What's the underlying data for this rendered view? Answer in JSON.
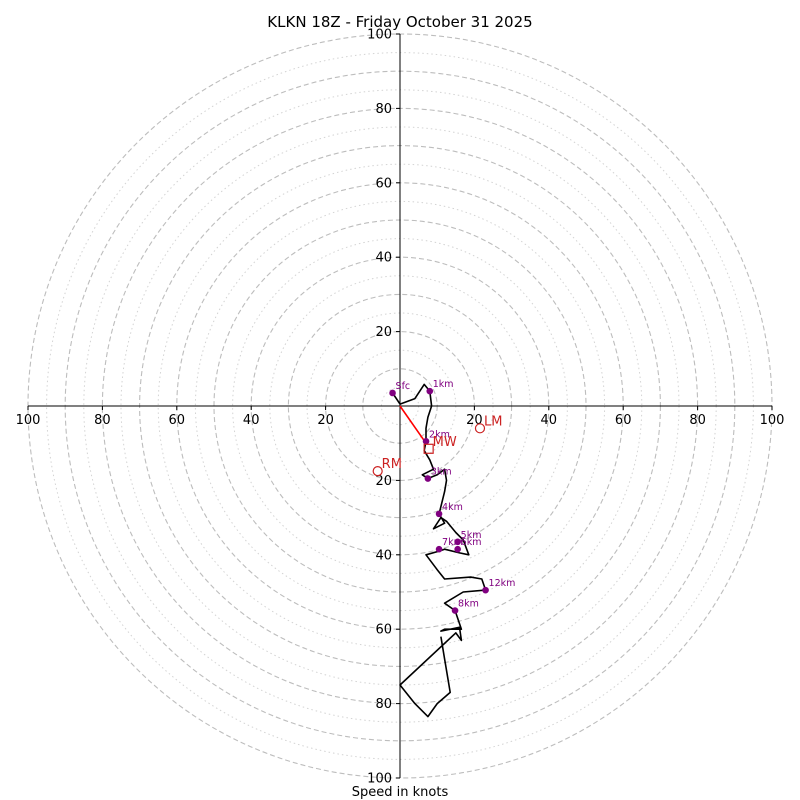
{
  "chart_data": {
    "type": "hodograph",
    "title": "KLKN 18Z - Friday October 31 2025",
    "xlabel": "Speed in knots",
    "xlim": [
      -100,
      100
    ],
    "ylim": [
      -100,
      100
    ],
    "major_rings": [
      10,
      20,
      30,
      40,
      50,
      60,
      70,
      80,
      90,
      100
    ],
    "minor_rings": [
      5,
      15,
      25,
      35,
      45,
      55,
      65,
      75,
      85,
      95
    ],
    "x_ticks": [
      {
        "value": -100,
        "label": "100"
      },
      {
        "value": -80,
        "label": "80"
      },
      {
        "value": -60,
        "label": "60"
      },
      {
        "value": -40,
        "label": "40"
      },
      {
        "value": -20,
        "label": "20"
      },
      {
        "value": 20,
        "label": "20"
      },
      {
        "value": 40,
        "label": "40"
      },
      {
        "value": 60,
        "label": "60"
      },
      {
        "value": 80,
        "label": "80"
      },
      {
        "value": 100,
        "label": "100"
      }
    ],
    "y_ticks": [
      {
        "value": 100,
        "label": "100"
      },
      {
        "value": 80,
        "label": "80"
      },
      {
        "value": 60,
        "label": "60"
      },
      {
        "value": 40,
        "label": "40"
      },
      {
        "value": 20,
        "label": "20"
      },
      {
        "value": -20,
        "label": "20"
      },
      {
        "value": -40,
        "label": "40"
      },
      {
        "value": -60,
        "label": "60"
      },
      {
        "value": -80,
        "label": "80"
      },
      {
        "value": -100,
        "label": "100"
      }
    ],
    "hodograph_line": {
      "color": "#000000",
      "points": [
        [
          -2,
          3.5
        ],
        [
          0,
          0.5
        ],
        [
          4,
          2
        ],
        [
          6.5,
          5.8
        ],
        [
          8,
          4
        ],
        [
          8.5,
          0
        ],
        [
          7.5,
          -3
        ],
        [
          7,
          -6
        ],
        [
          7,
          -9.5
        ],
        [
          6.5,
          -12
        ],
        [
          8,
          -14.5
        ],
        [
          9,
          -17
        ],
        [
          6,
          -18.5
        ],
        [
          7.5,
          -19.5
        ],
        [
          10,
          -18.5
        ],
        [
          12,
          -17
        ],
        [
          12.5,
          -20
        ],
        [
          12,
          -23
        ],
        [
          10.5,
          -29
        ],
        [
          12,
          -31.5
        ],
        [
          9,
          -33
        ],
        [
          11,
          -30
        ],
        [
          12.5,
          -31
        ],
        [
          15,
          -34
        ],
        [
          17,
          -36
        ],
        [
          18.5,
          -40
        ],
        [
          16,
          -39.5
        ],
        [
          12,
          -38.5
        ],
        [
          10.5,
          -39
        ],
        [
          7,
          -40
        ],
        [
          10,
          -44
        ],
        [
          12,
          -46.5
        ],
        [
          19,
          -46
        ],
        [
          22,
          -46.5
        ],
        [
          23,
          -49.5
        ],
        [
          17,
          -50
        ],
        [
          12,
          -53
        ],
        [
          14.8,
          -55
        ],
        [
          16.5,
          -60
        ],
        [
          12,
          -60
        ],
        [
          11,
          -60.5
        ],
        [
          16,
          -59.5
        ],
        [
          16.5,
          -63
        ],
        [
          15,
          -61
        ],
        [
          0,
          -75
        ],
        [
          4,
          -80
        ],
        [
          7.5,
          -83.5
        ],
        [
          10,
          -80
        ],
        [
          13.5,
          -77
        ],
        [
          12,
          -68
        ],
        [
          11,
          -62
        ]
      ]
    },
    "mean_wind_segment": {
      "color": "#ff0000",
      "points": [
        [
          0,
          0
        ],
        [
          7,
          -10
        ]
      ]
    },
    "height_points": [
      {
        "label": "Sfc",
        "u": -2,
        "v": 3.5
      },
      {
        "label": "1km",
        "u": 8,
        "v": 4
      },
      {
        "label": "2km",
        "u": 7,
        "v": -9.5
      },
      {
        "label": "3km",
        "u": 7.5,
        "v": -19.5
      },
      {
        "label": "4km",
        "u": 10.5,
        "v": -29
      },
      {
        "label": "5km",
        "u": 15.5,
        "v": -36.5
      },
      {
        "label": "6km",
        "u": 15.5,
        "v": -38.5
      },
      {
        "label": "7km",
        "u": 10.5,
        "v": -38.5
      },
      {
        "label": "8km",
        "u": 14.8,
        "v": -55
      },
      {
        "label": "12km",
        "u": 23,
        "v": -49.5
      }
    ],
    "height_point_color": "#800080",
    "markers": [
      {
        "label": "LM",
        "u": 21.5,
        "v": -6,
        "shape": "circle"
      },
      {
        "label": "MW",
        "u": 7.7,
        "v": -11.5,
        "shape": "square"
      },
      {
        "label": "RM",
        "u": -6,
        "v": -17.5,
        "shape": "circle"
      }
    ],
    "marker_color": "#cc2222"
  }
}
